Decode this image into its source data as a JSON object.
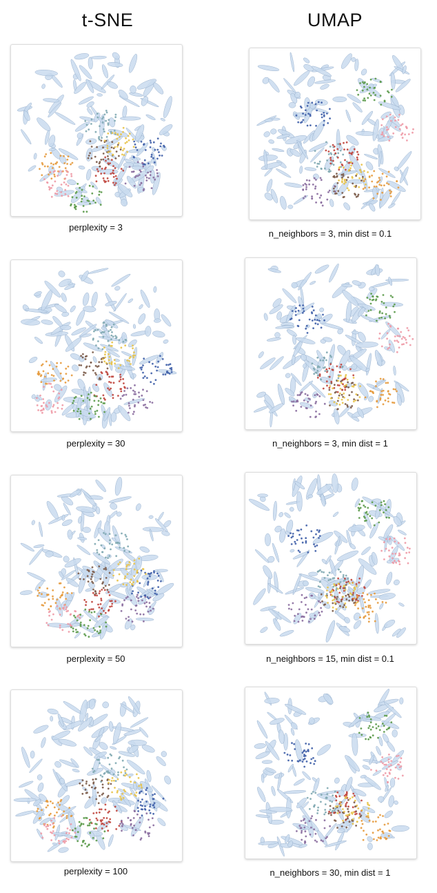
{
  "columns": {
    "left_title": "t-SNE",
    "right_title": "UMAP"
  },
  "colors": {
    "ellipse_fill": "#c9dbef",
    "ellipse_stroke": "#8fa9c7",
    "blue": "#3f5fa8",
    "teal": "#7fa8b1",
    "brown": "#7a5a48",
    "red": "#c0453d",
    "gold": "#e8c34a",
    "orange": "#e59a3d",
    "pink": "#ee9aa6",
    "green": "#5b9a4a",
    "purple": "#8a6d9e"
  },
  "chart_data": [
    {
      "type": "scatter",
      "method": "t-SNE",
      "caption": "perplexity = 3",
      "seed": 3,
      "clusters": [
        "blue",
        "teal",
        "brown",
        "red",
        "gold",
        "orange",
        "pink",
        "green",
        "purple"
      ]
    },
    {
      "type": "scatter",
      "method": "UMAP",
      "caption": "n_neighbors = 3, min dist = 0.1",
      "seed": 11,
      "clusters": [
        "blue",
        "teal",
        "brown",
        "red",
        "gold",
        "orange",
        "pink",
        "green",
        "purple"
      ]
    },
    {
      "type": "scatter",
      "method": "t-SNE",
      "caption": "perplexity = 30",
      "seed": 30,
      "clusters": [
        "blue",
        "teal",
        "brown",
        "red",
        "gold",
        "orange",
        "pink",
        "green",
        "purple"
      ]
    },
    {
      "type": "scatter",
      "method": "UMAP",
      "caption": "n_neighbors = 3, min dist = 1",
      "seed": 17,
      "clusters": [
        "blue",
        "teal",
        "brown",
        "red",
        "gold",
        "orange",
        "pink",
        "green",
        "purple"
      ]
    },
    {
      "type": "scatter",
      "method": "t-SNE",
      "caption": "perplexity = 50",
      "seed": 50,
      "clusters": [
        "blue",
        "teal",
        "brown",
        "red",
        "gold",
        "orange",
        "pink",
        "green",
        "purple"
      ]
    },
    {
      "type": "scatter",
      "method": "UMAP",
      "caption": "n_neighbors = 15, min dist = 0.1",
      "seed": 23,
      "clusters": [
        "blue",
        "teal",
        "brown",
        "red",
        "gold",
        "orange",
        "pink",
        "green",
        "purple"
      ]
    },
    {
      "type": "scatter",
      "method": "t-SNE",
      "caption": "perplexity = 100",
      "seed": 100,
      "clusters": [
        "blue",
        "teal",
        "brown",
        "red",
        "gold",
        "orange",
        "pink",
        "green",
        "purple"
      ]
    },
    {
      "type": "scatter",
      "method": "UMAP",
      "caption": "n_neighbors = 30, min dist = 1",
      "seed": 31,
      "clusters": [
        "blue",
        "teal",
        "brown",
        "red",
        "gold",
        "orange",
        "pink",
        "green",
        "purple"
      ]
    }
  ]
}
